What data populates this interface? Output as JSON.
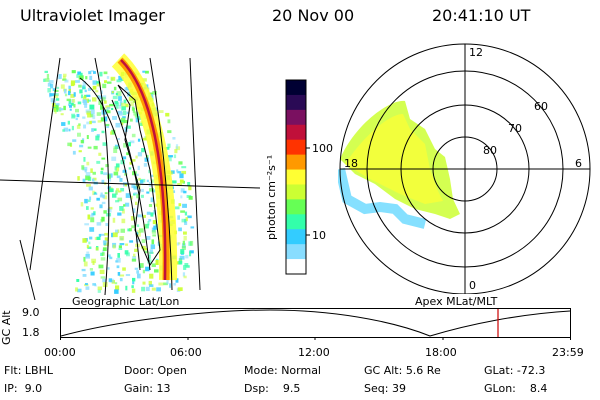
{
  "header": {
    "title": "Ultraviolet Imager",
    "date": "20 Nov 00",
    "time": "20:41:10 UT"
  },
  "colorbar": {
    "label": "photon cm⁻²s⁻¹",
    "ticks": [
      "100",
      "10"
    ],
    "colors": [
      "#000033",
      "#2a0a55",
      "#7a1060",
      "#c0103a",
      "#ff3300",
      "#ff9900",
      "#ffff33",
      "#ccff33",
      "#66ff55",
      "#33ffaa",
      "#33ccff",
      "#88ddff",
      "#ffffff"
    ]
  },
  "left_panel": {
    "label": "Geographic Lat/Lon"
  },
  "right_panel": {
    "label": "Apex MLat/MLT",
    "mlt_labels": {
      "top": "12",
      "left": "18",
      "right": "6",
      "bottom": "0"
    },
    "lat_labels": [
      "60",
      "70",
      "80"
    ]
  },
  "timeline": {
    "ylabel": "GC Alt",
    "yticks": [
      "9.0",
      "1.8"
    ],
    "xticks": [
      "00:00",
      "06:00",
      "12:00",
      "18:00",
      "23:59"
    ],
    "marker_color": "#cc0000"
  },
  "status": {
    "flt_label": "Flt:",
    "flt": "LBHL",
    "ip_label": "IP:",
    "ip": "9.0",
    "door_label": "Door:",
    "door": "Open",
    "gain_label": "Gain:",
    "gain": "13",
    "mode_label": "Mode:",
    "mode": "Normal",
    "dsp_label": "Dsp:",
    "dsp": "9.5",
    "gcalt_label": "GC Alt:",
    "gcalt": "5.6 Re",
    "seq_label": "Seq:",
    "seq": "39",
    "glat_label": "GLat:",
    "glat": "-72.3",
    "glon_label": "GLon:",
    "glon": "8.4"
  }
}
